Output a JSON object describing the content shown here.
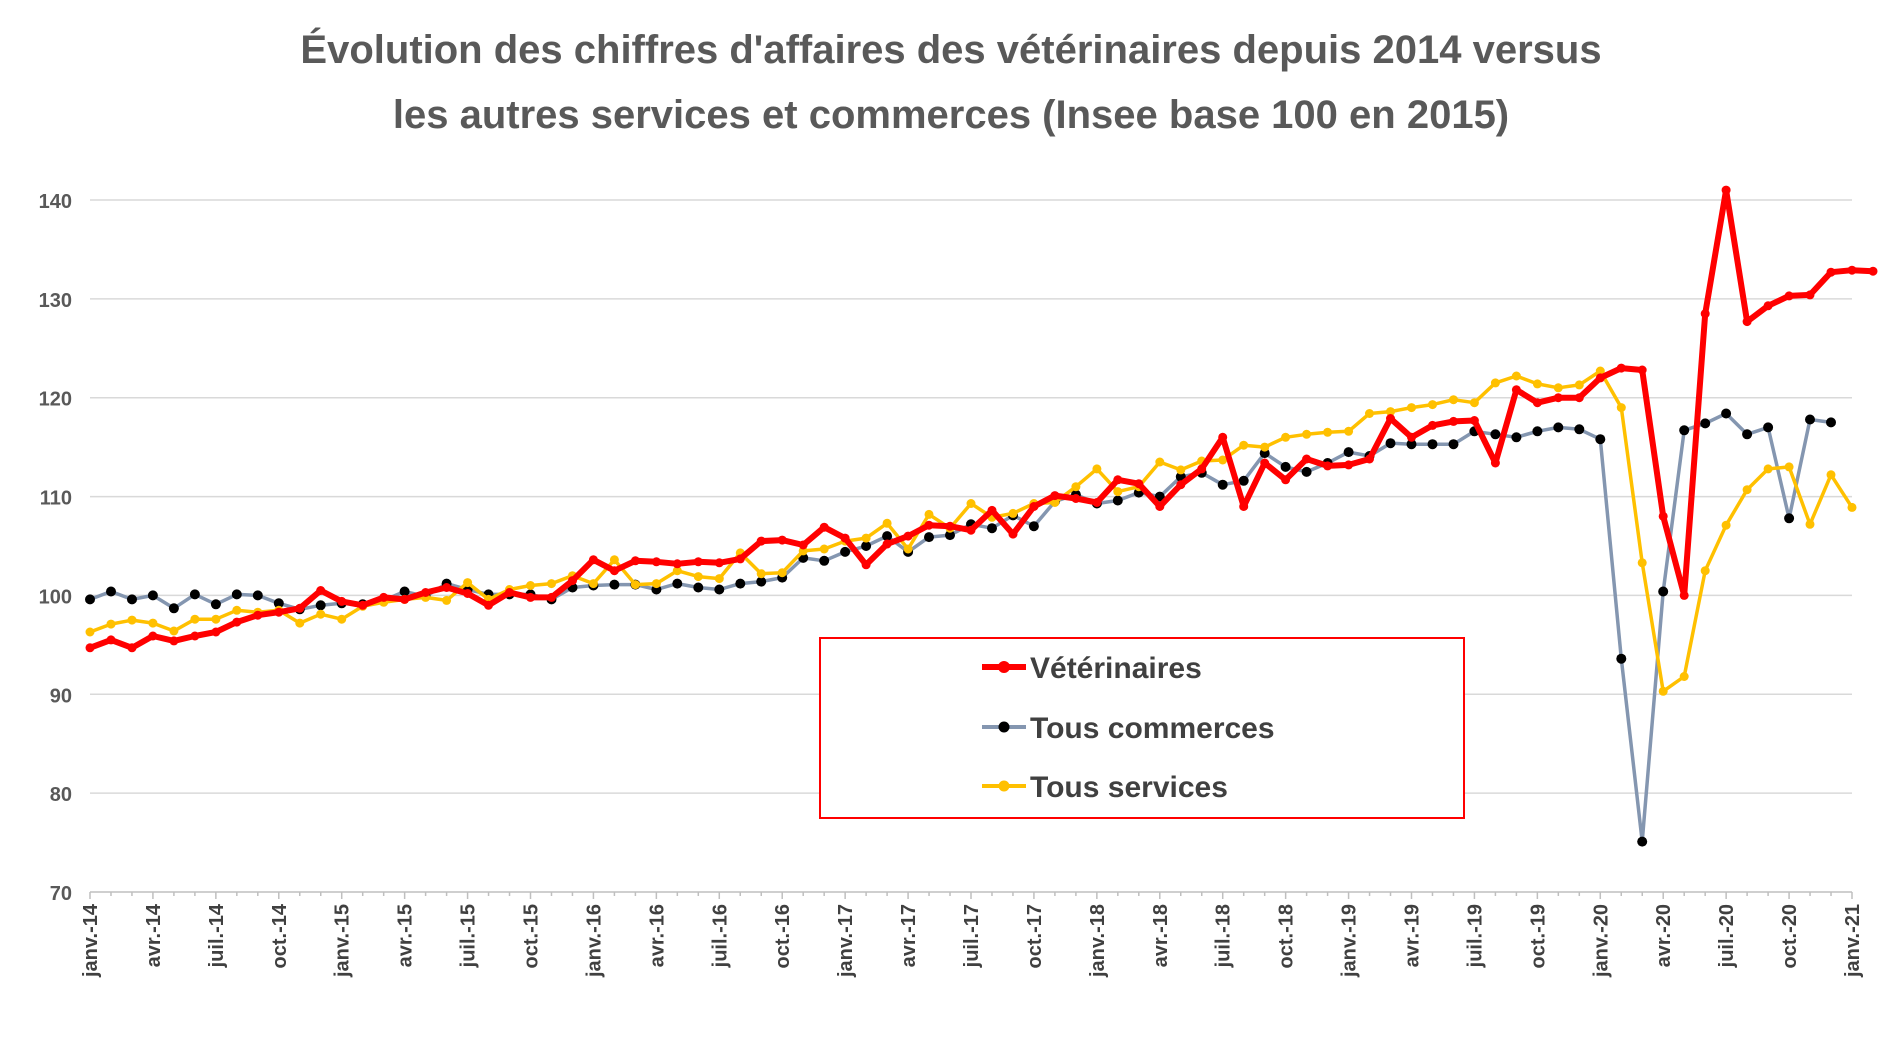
{
  "chart_data": {
    "type": "line",
    "title_lines": [
      "Évolution des chiffres d'affaires des vétérinaires depuis 2014 versus",
      "les autres services et commerces (Insee base 100 en 2015)"
    ],
    "xlabel": "",
    "ylabel": "",
    "ylim": [
      70,
      140
    ],
    "yticks": [
      70,
      80,
      90,
      100,
      110,
      120,
      130,
      140
    ],
    "grid": true,
    "legend_position": "center",
    "x_tick_labels": [
      {
        "index": 0,
        "label": "janv.-14"
      },
      {
        "index": 3,
        "label": "avr.-14"
      },
      {
        "index": 6,
        "label": "juil.-14"
      },
      {
        "index": 9,
        "label": "oct.-14"
      },
      {
        "index": 12,
        "label": "janv.-15"
      },
      {
        "index": 15,
        "label": "avr.-15"
      },
      {
        "index": 18,
        "label": "juil.-15"
      },
      {
        "index": 21,
        "label": "oct.-15"
      },
      {
        "index": 24,
        "label": "janv.-16"
      },
      {
        "index": 27,
        "label": "avr.-16"
      },
      {
        "index": 30,
        "label": "juil.-16"
      },
      {
        "index": 33,
        "label": "oct.-16"
      },
      {
        "index": 36,
        "label": "janv.-17"
      },
      {
        "index": 39,
        "label": "avr.-17"
      },
      {
        "index": 42,
        "label": "juil.-17"
      },
      {
        "index": 45,
        "label": "oct.-17"
      },
      {
        "index": 48,
        "label": "janv.-18"
      },
      {
        "index": 51,
        "label": "avr.-18"
      },
      {
        "index": 54,
        "label": "juil.-18"
      },
      {
        "index": 57,
        "label": "oct.-18"
      },
      {
        "index": 60,
        "label": "janv.-19"
      },
      {
        "index": 63,
        "label": "avr.-19"
      },
      {
        "index": 66,
        "label": "juil.-19"
      },
      {
        "index": 69,
        "label": "oct.-19"
      },
      {
        "index": 72,
        "label": "janv.-20"
      },
      {
        "index": 75,
        "label": "avr.-20"
      },
      {
        "index": 78,
        "label": "juil.-20"
      },
      {
        "index": 81,
        "label": "oct.-20"
      },
      {
        "index": 84,
        "label": "janv.-21"
      }
    ],
    "series": [
      {
        "name": "Vétérinaires",
        "color": "#ff0000",
        "marker_color": "#ff0000",
        "values": [
          94.7,
          95.5,
          94.7,
          95.9,
          95.4,
          95.9,
          96.3,
          97.3,
          98.0,
          98.3,
          98.7,
          100.5,
          99.4,
          99.0,
          99.8,
          99.6,
          100.3,
          100.8,
          100.2,
          99.0,
          100.3,
          99.8,
          99.8,
          101.5,
          103.6,
          102.5,
          103.5,
          103.4,
          103.2,
          103.4,
          103.3,
          103.7,
          105.5,
          105.6,
          105.1,
          106.9,
          105.8,
          103.1,
          105.2,
          106.0,
          107.1,
          107.0,
          106.6,
          108.6,
          106.2,
          109.0,
          110.1,
          109.8,
          109.4,
          111.7,
          111.3,
          109.0,
          111.2,
          112.8,
          116.0,
          109.0,
          113.4,
          111.7,
          113.8,
          113.1,
          113.2,
          113.8,
          117.9,
          116.0,
          117.2,
          117.6,
          117.7,
          113.4,
          120.8,
          119.5,
          120.0,
          120.0,
          122.0,
          123.0,
          122.8,
          108.0,
          100.0,
          128.5,
          141.0,
          127.7,
          129.3,
          130.3,
          130.4,
          132.7,
          132.9,
          132.8
        ]
      },
      {
        "name": "Tous commerces",
        "color": "#8496b0",
        "marker_color": "#000000",
        "values": [
          99.6,
          100.4,
          99.6,
          100.0,
          98.7,
          100.1,
          99.1,
          100.1,
          100.0,
          99.2,
          98.6,
          99.0,
          99.2,
          99.1,
          99.5,
          100.4,
          99.9,
          101.2,
          100.6,
          100.1,
          100.1,
          100.1,
          99.6,
          100.8,
          101.0,
          101.1,
          101.1,
          100.6,
          101.2,
          100.8,
          100.6,
          101.2,
          101.4,
          101.8,
          103.8,
          103.5,
          104.4,
          105.0,
          106.0,
          104.4,
          105.9,
          106.1,
          107.2,
          106.8,
          108.1,
          107.0,
          109.5,
          110.2,
          109.3,
          109.6,
          110.4,
          110.0,
          112.0,
          112.4,
          111.2,
          111.6,
          114.4,
          113.0,
          112.5,
          113.4,
          114.5,
          114.1,
          115.4,
          115.3,
          115.3,
          115.3,
          116.6,
          116.3,
          116.0,
          116.6,
          117.0,
          116.8,
          115.8,
          93.6,
          75.1,
          100.4,
          116.7,
          117.4,
          118.4,
          116.3,
          117.0,
          107.8,
          117.8,
          117.5
        ]
      },
      {
        "name": "Tous services",
        "color": "#ffc000",
        "marker_color": "#ffc000",
        "values": [
          96.3,
          97.1,
          97.5,
          97.2,
          96.4,
          97.6,
          97.6,
          98.5,
          98.3,
          98.5,
          97.2,
          98.1,
          97.6,
          98.9,
          99.3,
          99.6,
          99.8,
          99.5,
          101.3,
          99.6,
          100.6,
          101.0,
          101.2,
          102.0,
          101.2,
          103.6,
          101.1,
          101.2,
          102.5,
          101.9,
          101.7,
          104.3,
          102.2,
          102.3,
          104.5,
          104.7,
          105.5,
          105.8,
          107.3,
          104.7,
          108.2,
          106.8,
          109.3,
          107.9,
          108.3,
          109.3,
          109.4,
          111.0,
          112.8,
          110.5,
          111.0,
          113.5,
          112.7,
          113.6,
          113.7,
          115.2,
          115.0,
          116.0,
          116.3,
          116.5,
          116.6,
          118.4,
          118.6,
          119.0,
          119.3,
          119.8,
          119.5,
          121.5,
          122.2,
          121.4,
          121.0,
          121.3,
          122.7,
          119.0,
          103.3,
          90.3,
          91.8,
          102.5,
          107.1,
          110.7,
          112.8,
          113.0,
          107.2,
          112.2,
          108.9
        ]
      }
    ]
  }
}
